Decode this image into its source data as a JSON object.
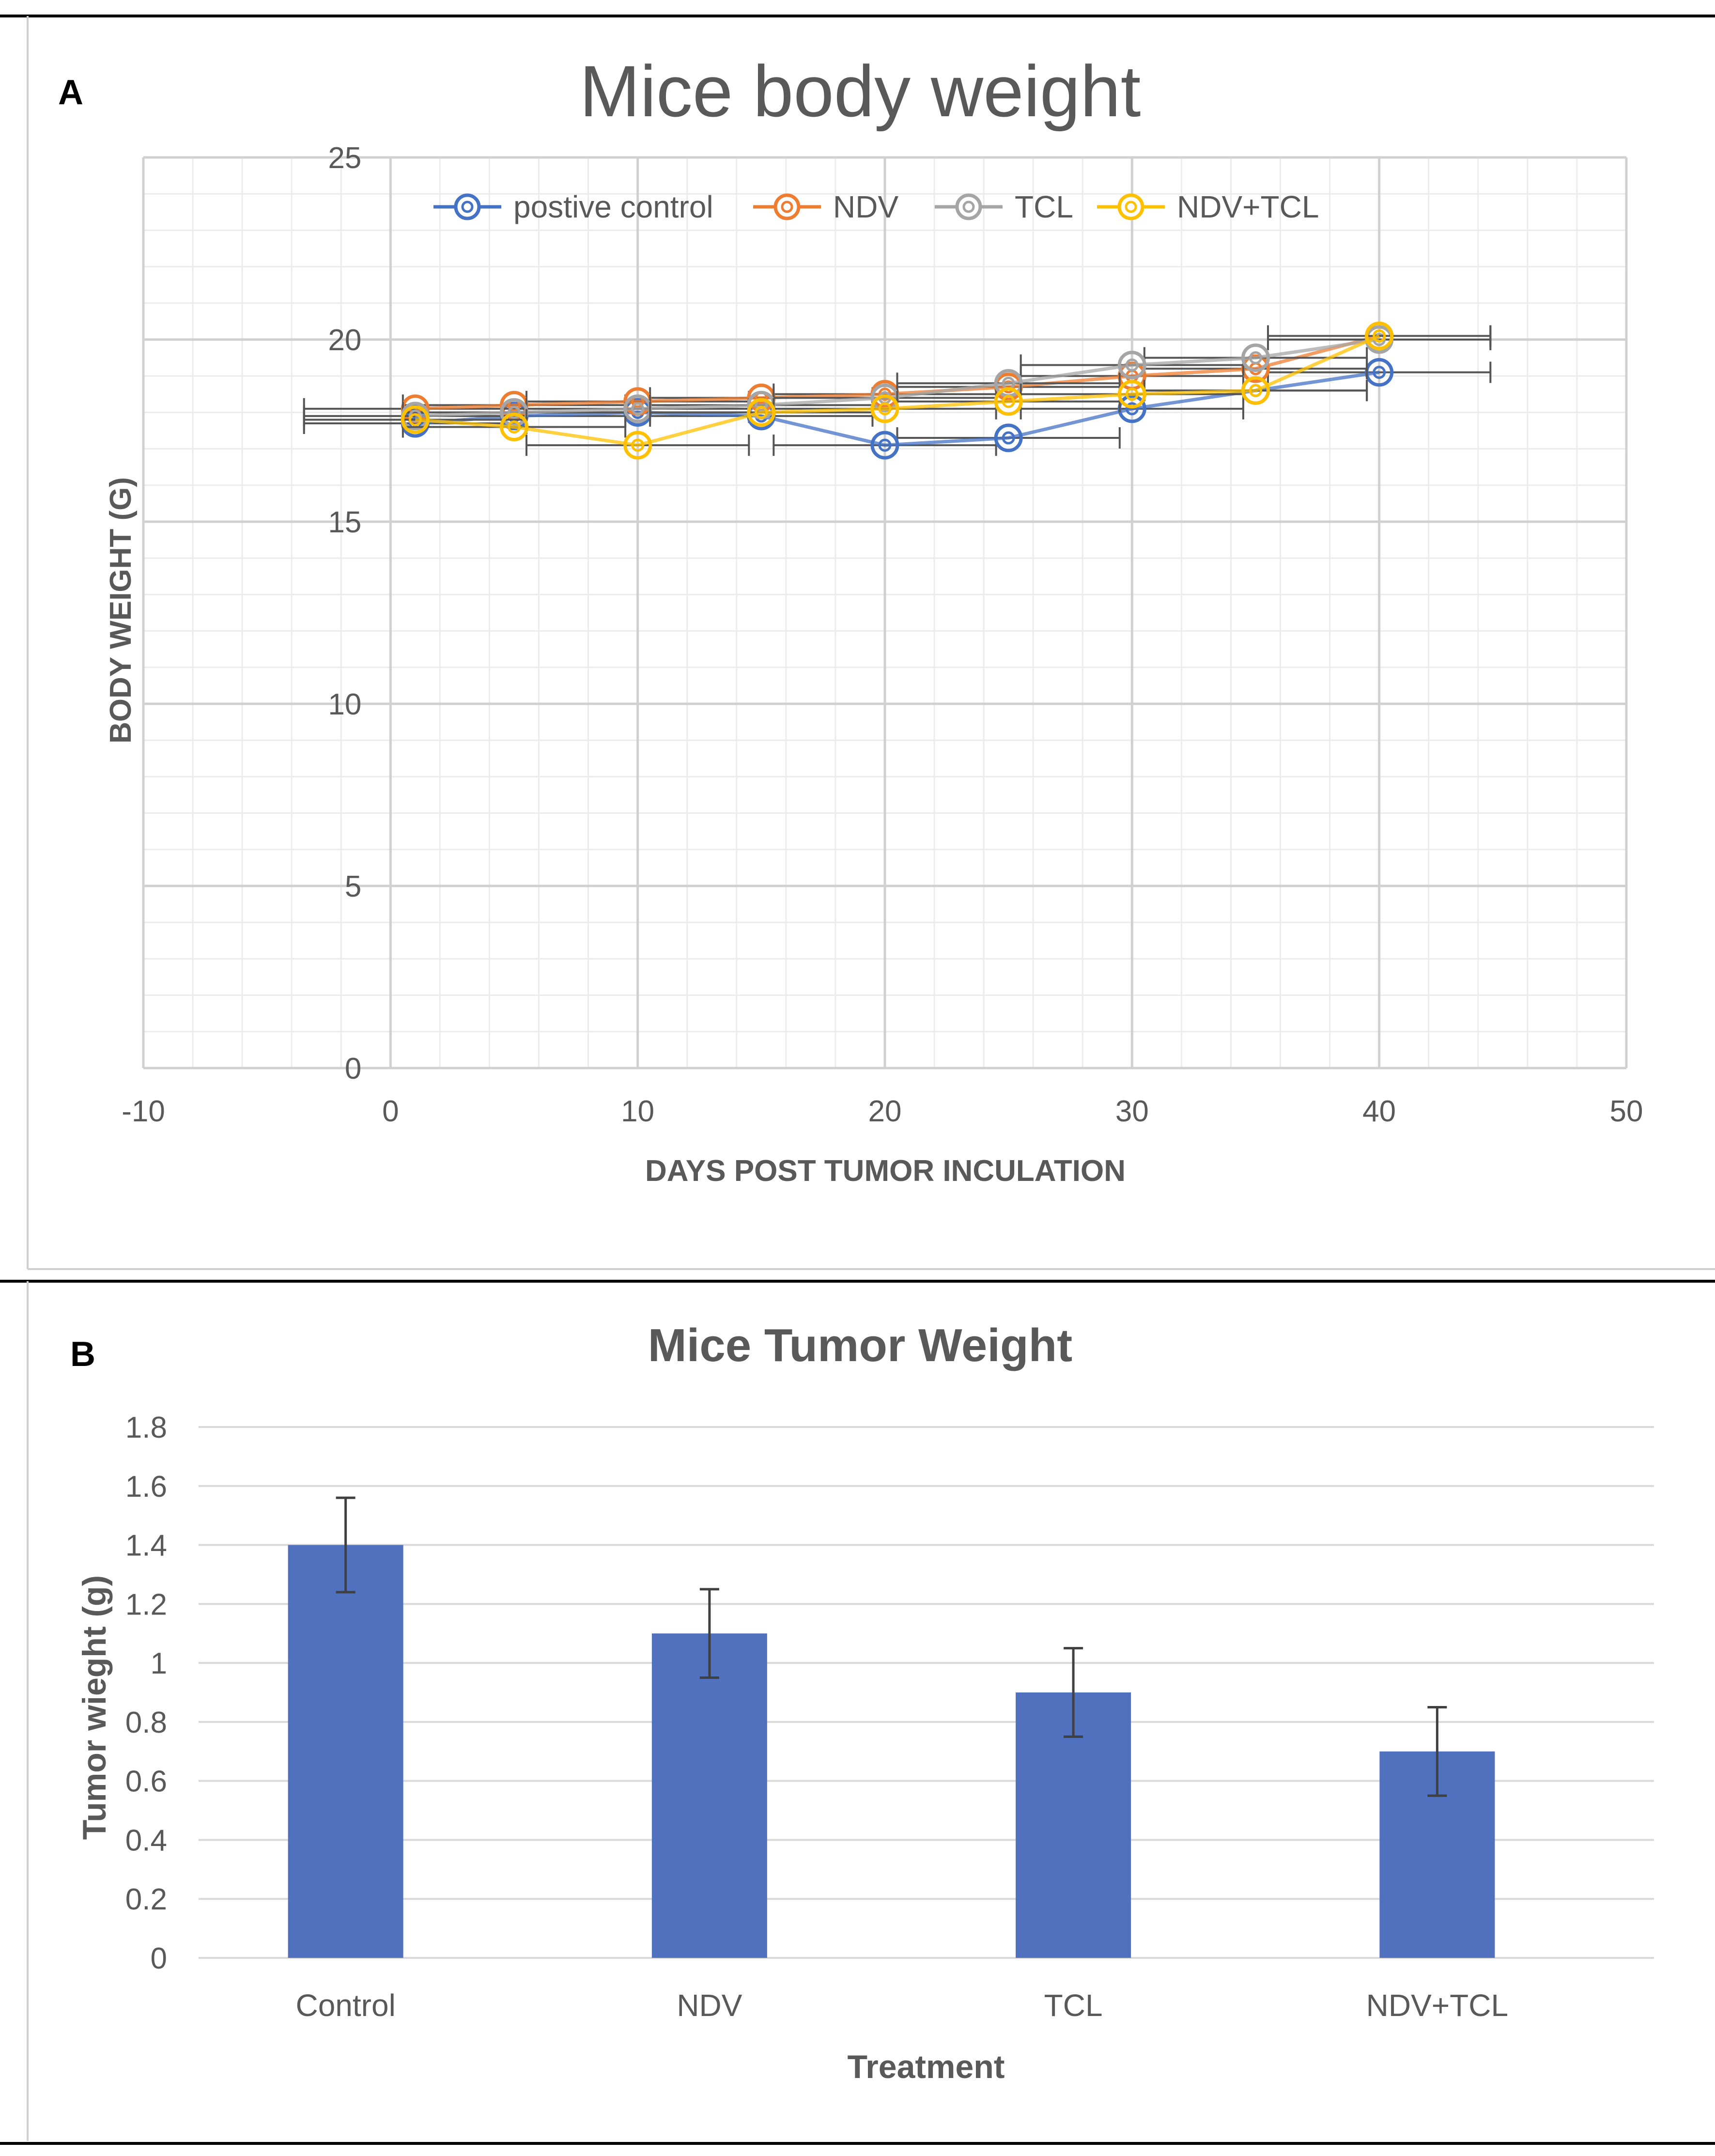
{
  "panel_a_label": "A",
  "panel_b_label": "B",
  "colors": {
    "positive_control": "#4472C4",
    "ndv": "#ED7D31",
    "tcl": "#A5A5A5",
    "ndv_tcl": "#FFC000",
    "bar": "#4F71BE",
    "error_bar": "#404040"
  },
  "chart_data": [
    {
      "type": "line",
      "title": "Mice body weight",
      "xlabel": "DAYS POST TUMOR INCULATION",
      "ylabel": "BODY WEIGHT (G)",
      "xlim": [
        -10,
        50
      ],
      "ylim": [
        0,
        25
      ],
      "xticks": [
        -10,
        0,
        10,
        20,
        30,
        40,
        50
      ],
      "yticks": [
        0,
        5,
        10,
        15,
        20,
        25
      ],
      "grid": true,
      "legend_position": "top",
      "x": [
        1,
        5,
        10,
        15,
        20,
        25,
        30,
        35,
        40
      ],
      "series": [
        {
          "name": "postive control",
          "color": "#4472C4",
          "values": [
            17.7,
            17.9,
            18.0,
            17.9,
            17.1,
            17.3,
            18.1,
            18.6,
            19.1
          ],
          "x_error": [
            4.5,
            4.5,
            4.5,
            4.5,
            4.5,
            4.5,
            4.5,
            4.5,
            4.5
          ]
        },
        {
          "name": "NDV",
          "color": "#ED7D31",
          "values": [
            18.1,
            18.2,
            18.3,
            18.4,
            18.5,
            18.7,
            19.0,
            19.2,
            20.1
          ],
          "x_error": [
            4.5,
            4.5,
            4.5,
            4.5,
            4.5,
            4.5,
            4.5,
            4.5,
            4.5
          ]
        },
        {
          "name": "TCL",
          "color": "#A5A5A5",
          "values": [
            17.9,
            18.0,
            18.1,
            18.2,
            18.4,
            18.8,
            19.3,
            19.5,
            20.0
          ],
          "x_error": [
            4.5,
            4.5,
            4.5,
            4.5,
            4.5,
            4.5,
            4.5,
            4.5,
            4.5
          ]
        },
        {
          "name": "NDV+TCL",
          "color": "#FFC000",
          "values": [
            17.8,
            17.6,
            17.1,
            18.0,
            18.1,
            18.3,
            18.5,
            18.6,
            20.1
          ],
          "x_error": [
            4.5,
            4.5,
            4.5,
            4.5,
            4.5,
            4.5,
            4.5,
            4.5,
            4.5
          ]
        }
      ]
    },
    {
      "type": "bar",
      "title": "Mice Tumor Weight",
      "xlabel": "Treatment",
      "ylabel": "Tumor wieght (g)",
      "ylim": [
        0,
        1.8
      ],
      "yticks": [
        "0",
        "0.2",
        "0.4",
        "0.6",
        "0.8",
        "1",
        "1.2",
        "1.4",
        "1.6",
        "1.8"
      ],
      "grid": true,
      "categories": [
        "Control",
        "NDV",
        "TCL",
        "NDV+TCL"
      ],
      "values": [
        1.4,
        1.1,
        0.9,
        0.7
      ],
      "error": [
        0.16,
        0.15,
        0.15,
        0.15
      ]
    }
  ]
}
